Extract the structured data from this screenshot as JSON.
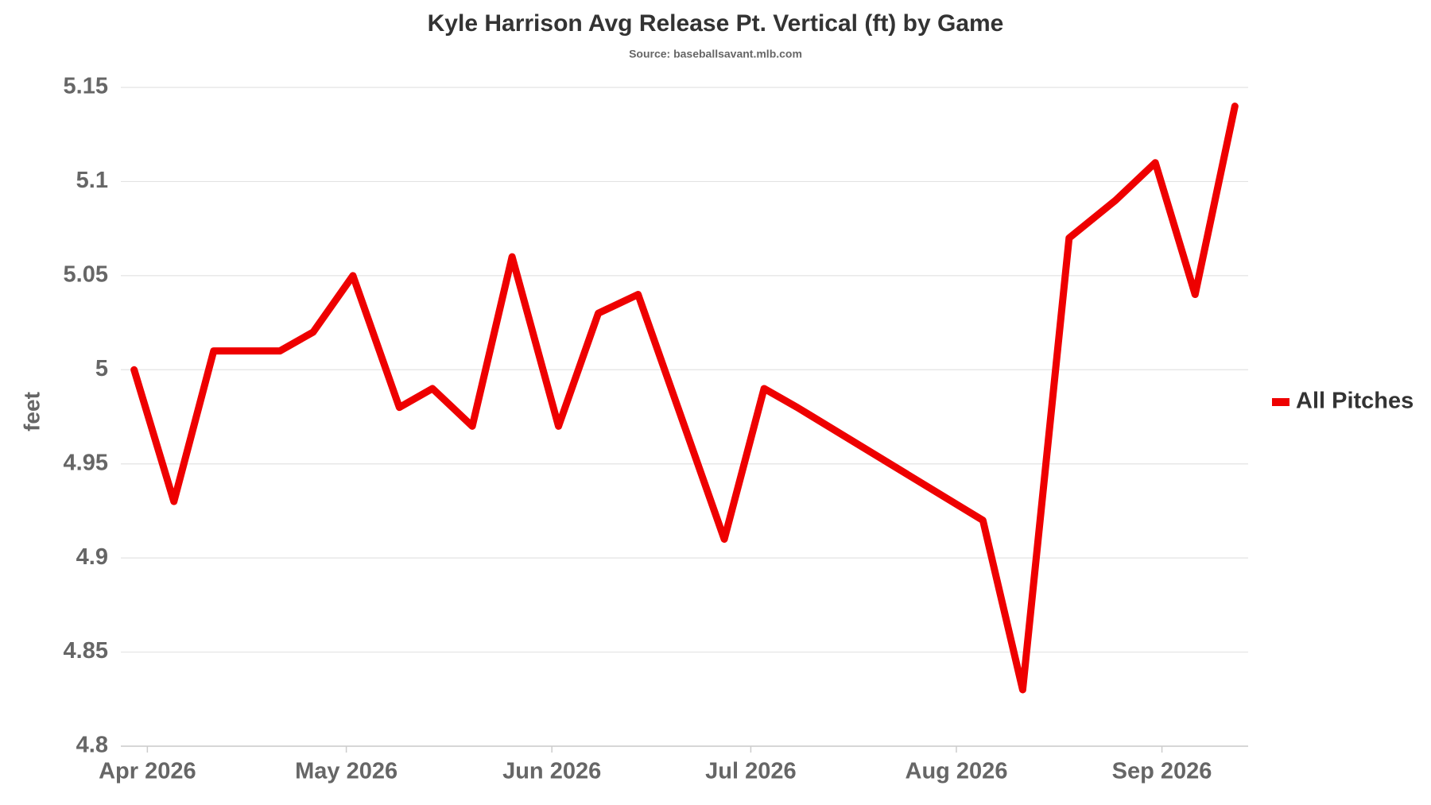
{
  "chart_data": {
    "type": "line",
    "title": "Kyle Harrison Avg Release Pt. Vertical (ft) by Game",
    "subtitle": "Source: baseballsavant.mlb.com",
    "y_label": "feet",
    "x": [
      "2026-03-30",
      "2026-04-05",
      "2026-04-11",
      "2026-04-21",
      "2026-04-26",
      "2026-05-02",
      "2026-05-09",
      "2026-05-14",
      "2026-05-20",
      "2026-05-26",
      "2026-06-02",
      "2026-06-08",
      "2026-06-14",
      "2026-06-20",
      "2026-06-27",
      "2026-07-03",
      "2026-07-08",
      "2026-08-05",
      "2026-08-11",
      "2026-08-18",
      "2026-08-25",
      "2026-08-31",
      "2026-09-06",
      "2026-09-12"
    ],
    "series": [
      {
        "name": "All Pitches",
        "color": "#ee0000",
        "values": [
          5.0,
          4.93,
          5.01,
          5.01,
          5.02,
          5.05,
          4.98,
          4.99,
          4.97,
          5.06,
          4.97,
          5.03,
          5.04,
          4.98,
          4.91,
          4.99,
          4.98,
          4.92,
          4.83,
          5.07,
          5.09,
          5.11,
          5.04,
          5.14
        ]
      }
    ],
    "xlim": [
      "2026-03-28",
      "2026-09-14"
    ],
    "xticks": [
      {
        "value": "2026-04-01",
        "label": "Apr 2026"
      },
      {
        "value": "2026-05-01",
        "label": "May 2026"
      },
      {
        "value": "2026-06-01",
        "label": "Jun 2026"
      },
      {
        "value": "2026-07-01",
        "label": "Jul 2026"
      },
      {
        "value": "2026-08-01",
        "label": "Aug 2026"
      },
      {
        "value": "2026-09-01",
        "label": "Sep 2026"
      }
    ],
    "ylim": [
      4.8,
      5.15
    ],
    "yticks": [
      4.8,
      4.85,
      4.9,
      4.95,
      5,
      5.05,
      5.1,
      5.15
    ],
    "grid": true,
    "legend": "right"
  }
}
